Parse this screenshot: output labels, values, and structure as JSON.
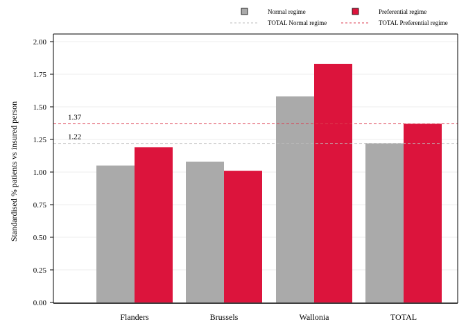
{
  "chart_data": {
    "type": "bar",
    "categories": [
      "Flanders",
      "Brussels",
      "Wallonia",
      "TOTAL"
    ],
    "series": [
      {
        "name": "Normal regime",
        "values": [
          1.05,
          1.08,
          1.58,
          1.22
        ],
        "color": "#aaaaaa"
      },
      {
        "name": "Preferential regime",
        "values": [
          1.19,
          1.01,
          1.83,
          1.37
        ],
        "color": "#dc143c"
      }
    ],
    "reference_lines": [
      {
        "name": "TOTAL Normal regime",
        "value": 1.22,
        "label": "1.22",
        "color": "#bdbdbd",
        "style": "dashed"
      },
      {
        "name": "TOTAL Preferential regime",
        "value": 1.37,
        "label": "1.37",
        "color": "#dc3c50",
        "style": "dashed"
      }
    ],
    "title": "",
    "xlabel": "",
    "ylabel": "Standardised % patients vs insured person",
    "ylim": [
      0,
      2
    ],
    "yticks": [
      "0.00",
      "0.25",
      "0.50",
      "0.75",
      "1.00",
      "1.25",
      "1.50",
      "1.75",
      "2.00"
    ],
    "grid": true,
    "legend_position": "top"
  }
}
